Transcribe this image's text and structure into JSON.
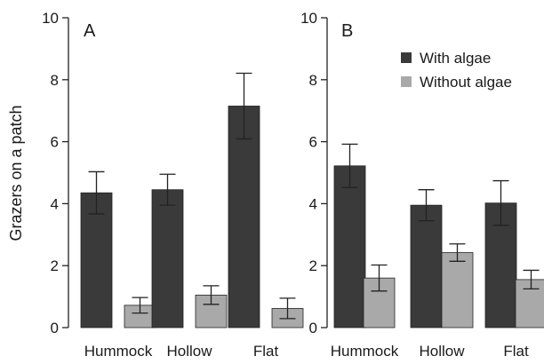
{
  "chart_data": {
    "type": "bar",
    "ylabel": "Grazers on a patch",
    "ylim": [
      0,
      10
    ],
    "yticks": [
      0,
      2,
      4,
      6,
      8,
      10
    ],
    "legend": {
      "placement": "top-right",
      "entries": [
        {
          "name": "With algae",
          "color": "#3a3a3a"
        },
        {
          "name": "Without algae",
          "color": "#a9a9a9"
        }
      ]
    },
    "panels": [
      {
        "label": "A",
        "categories": [
          "Hummock",
          "Hollow",
          "Flat"
        ],
        "series": [
          {
            "name": "With algae",
            "color": "#3a3a3a",
            "values": [
              4.35,
              4.45,
              7.15
            ],
            "errors": [
              0.68,
              0.5,
              1.06
            ]
          },
          {
            "name": "Without algae",
            "color": "#a9a9a9",
            "values": [
              0.72,
              1.05,
              0.62
            ],
            "errors": [
              0.25,
              0.3,
              0.33
            ]
          }
        ]
      },
      {
        "label": "B",
        "categories": [
          "Hummock",
          "Hollow",
          "Flat"
        ],
        "series": [
          {
            "name": "With algae",
            "color": "#3a3a3a",
            "values": [
              5.22,
              3.95,
              4.02
            ],
            "errors": [
              0.7,
              0.5,
              0.72
            ]
          },
          {
            "name": "Without algae",
            "color": "#a9a9a9",
            "values": [
              1.6,
              2.42,
              1.55
            ],
            "errors": [
              0.42,
              0.28,
              0.3
            ]
          }
        ]
      }
    ]
  }
}
